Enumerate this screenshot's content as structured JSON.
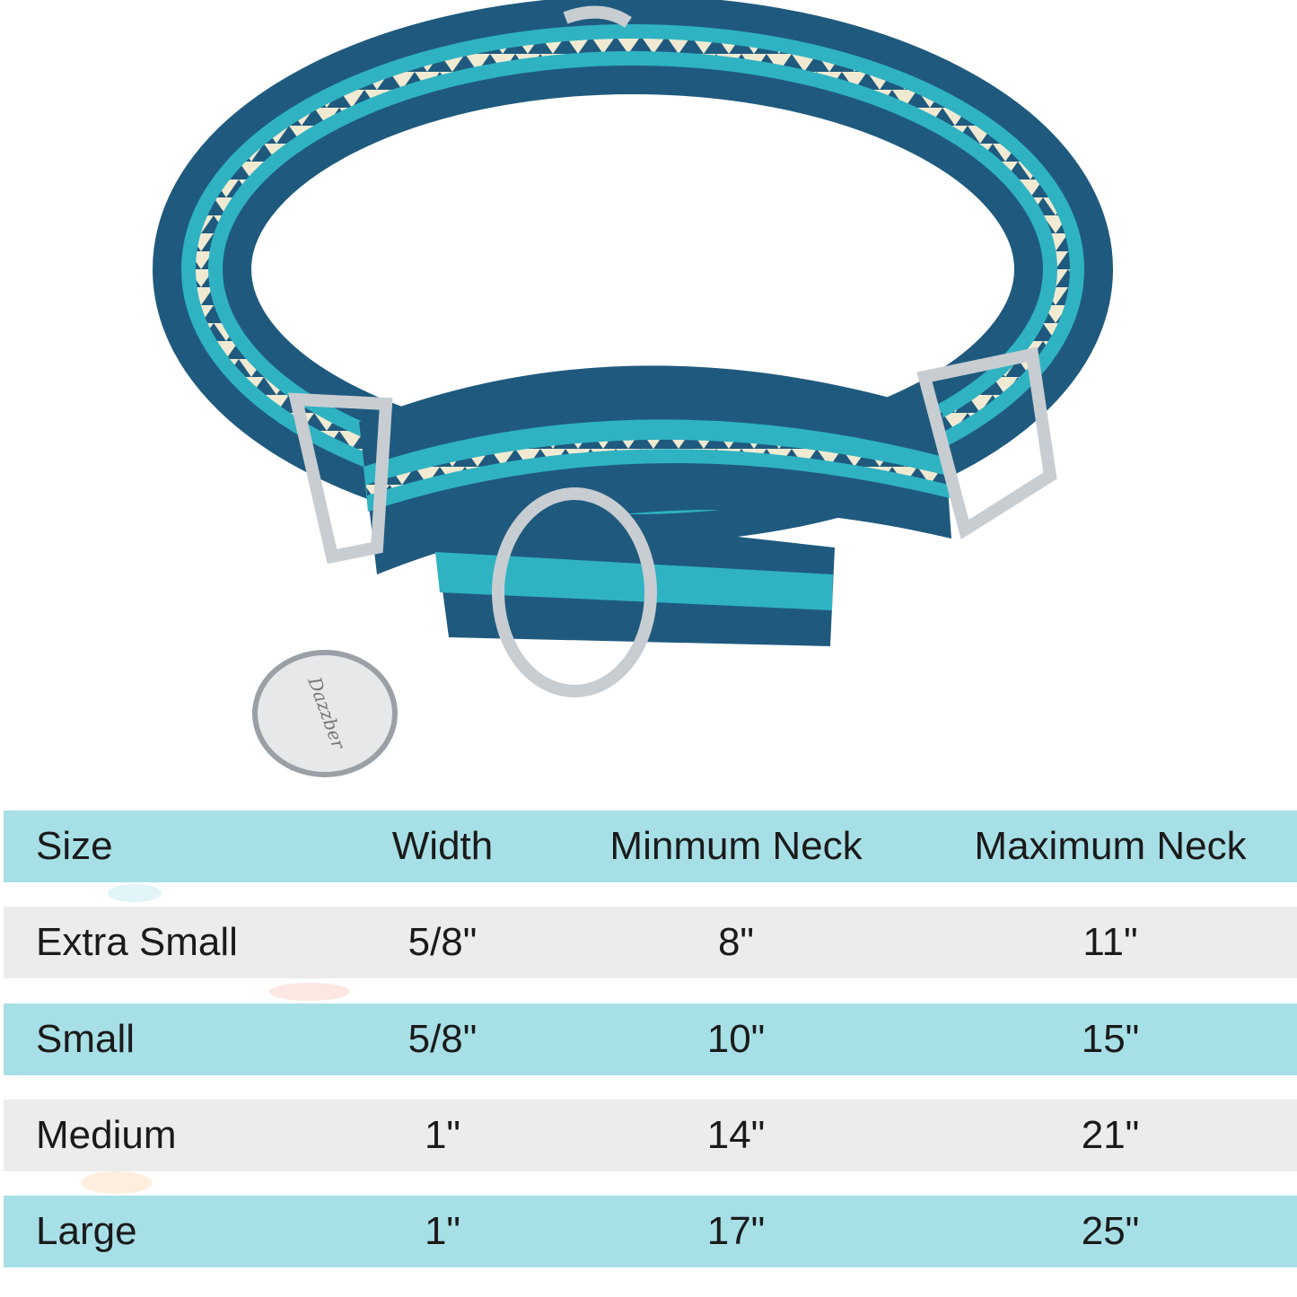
{
  "brand_logo": "Dazzber",
  "colors": {
    "header_row": "#a7dfe6",
    "alt_row_gray": "#ececec",
    "collar_dark": "#1f5a7e",
    "collar_teal": "#2fb3c2",
    "collar_cream": "#f1ead2"
  },
  "table": {
    "headers": [
      "Size",
      "Width",
      "Minmum Neck",
      "Maximum Neck"
    ],
    "rows": [
      [
        "Extra Small",
        "5/8\"",
        "8\"",
        "11\""
      ],
      [
        "Small",
        "5/8\"",
        "10\"",
        "15\""
      ],
      [
        "Medium",
        "1\"",
        "14\"",
        "21\""
      ],
      [
        "Large",
        "1\"",
        "17\"",
        "25\""
      ]
    ]
  }
}
